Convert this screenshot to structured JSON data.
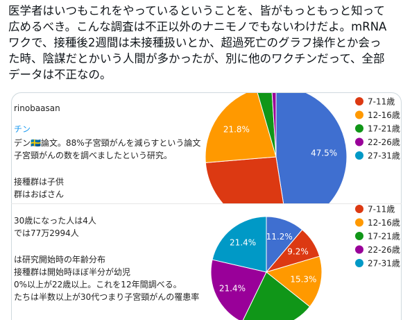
{
  "tweet": {
    "lines": [
      "医学者はいつもこれをやっているということを、皆がもっともっと知って",
      "広めるべき。こんな調査は不正以外のナニモノでもないわけだよ。mRNA",
      "ワクで、接種後2週間は未接種扱いとか、超過死亡のグラフ操作とか会っ",
      "た時、陰謀だとかいう人間が多かったが、別に他のワクチンだって、全部",
      "データは不正なの。"
    ]
  },
  "image_text": {
    "panel1": [
      "rinobaasan",
      "チン",
      "デン🇸🇪論文。88%子宮頸がんを減らすという論文",
      "子宮頸がんの数を調べましたという研究。",
      "接種群は子供",
      "群はおばさん"
    ],
    "panel2": [
      "30歳になった人は4人",
      "では77万2994人",
      "は研究開始時の年齢分布",
      "接種群は開始時ほぼ半分が幼児",
      "0%以上が22歳以上。これを12年間調べる。",
      "たちは半数以上が30代つまり子宮頸がんの罹患率"
    ]
  },
  "chart_data": [
    {
      "type": "pie",
      "categories": [
        "27-31歳",
        "7-11歳",
        "12-16歳",
        "17-21歳",
        "22-26歳"
      ],
      "values": [
        47.5,
        26.2,
        21.8,
        3.5,
        1.0
      ],
      "value_labels": [
        "47.5%",
        null,
        "21.8%",
        null,
        null
      ],
      "colors": [
        "#3f6fd0",
        "#dc3912",
        "#ff9900",
        "#109618",
        "#990099"
      ],
      "legend": [
        {
          "name": "7-11歳",
          "color": "#dc3912"
        },
        {
          "name": "12-16歳",
          "color": "#ff9900"
        },
        {
          "name": "17-21歳",
          "color": "#109618"
        },
        {
          "name": "22-26歳",
          "color": "#990099"
        },
        {
          "name": "27-31歳",
          "color": "#0099c6"
        }
      ]
    },
    {
      "type": "pie",
      "categories": [
        null,
        "7-11歳",
        "12-16歳",
        "17-21歳",
        "22-26歳",
        "27-31歳"
      ],
      "values": [
        11.2,
        9.2,
        15.3,
        21.5,
        21.4,
        21.4
      ],
      "value_labels": [
        "11.2%",
        "9.2%",
        "15.3%",
        null,
        "21.4%",
        "21.4%"
      ],
      "colors": [
        "#3f6fd0",
        "#dc3912",
        "#ff9900",
        "#109618",
        "#990099",
        "#0099c6"
      ],
      "legend": [
        {
          "name": "7-11歳",
          "color": "#dc3912"
        },
        {
          "name": "12-16歳",
          "color": "#ff9900"
        },
        {
          "name": "17-21歳",
          "color": "#109618"
        },
        {
          "name": "22-26歳",
          "color": "#990099"
        },
        {
          "name": "27-31歳",
          "color": "#0099c6"
        }
      ]
    }
  ]
}
